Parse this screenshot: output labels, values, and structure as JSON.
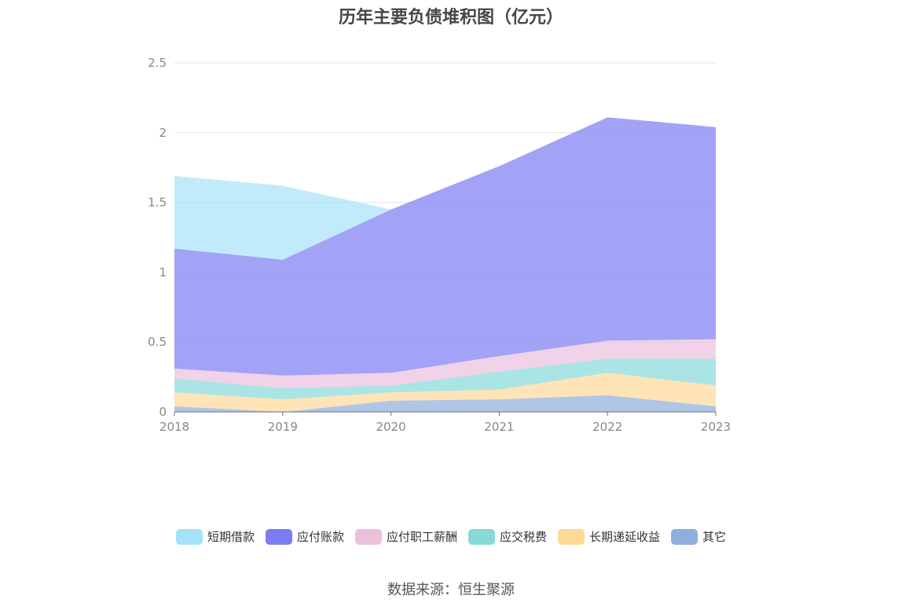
{
  "chart_data": {
    "type": "area",
    "stacked": true,
    "title": "历年主要负债堆积图（亿元）",
    "categories": [
      "2018",
      "2019",
      "2020",
      "2021",
      "2022",
      "2023"
    ],
    "y_ticks": [
      "0",
      "0.5",
      "1",
      "1.5",
      "2",
      "2.5"
    ],
    "ylim": [
      0,
      2.5
    ],
    "grid": true,
    "legend_position": "bottom",
    "series": [
      {
        "name": "其它",
        "color": "#8eaedd",
        "values": [
          0.04,
          0.0,
          0.08,
          0.09,
          0.12,
          0.04
        ]
      },
      {
        "name": "长期递延收益",
        "color": "#fed997",
        "values": [
          0.1,
          0.09,
          0.06,
          0.07,
          0.16,
          0.15
        ]
      },
      {
        "name": "应交税费",
        "color": "#88d9d8",
        "values": [
          0.1,
          0.08,
          0.05,
          0.13,
          0.1,
          0.19
        ]
      },
      {
        "name": "应付职工薪酬",
        "color": "#ecbfde",
        "values": [
          0.07,
          0.09,
          0.09,
          0.11,
          0.13,
          0.14
        ]
      },
      {
        "name": "应付账款",
        "color": "#7b7cf2",
        "values": [
          0.86,
          0.83,
          1.17,
          1.36,
          1.6,
          1.52
        ]
      },
      {
        "name": "短期借款",
        "color": "#a6e2f9",
        "values": [
          0.52,
          0.53,
          0.0,
          0.0,
          0.0,
          0.0
        ]
      }
    ]
  },
  "legend": [
    "短期借款",
    "应付账款",
    "应付职工薪酬",
    "应交税费",
    "长期递延收益",
    "其它"
  ],
  "source_text": "数据来源：恒生聚源"
}
